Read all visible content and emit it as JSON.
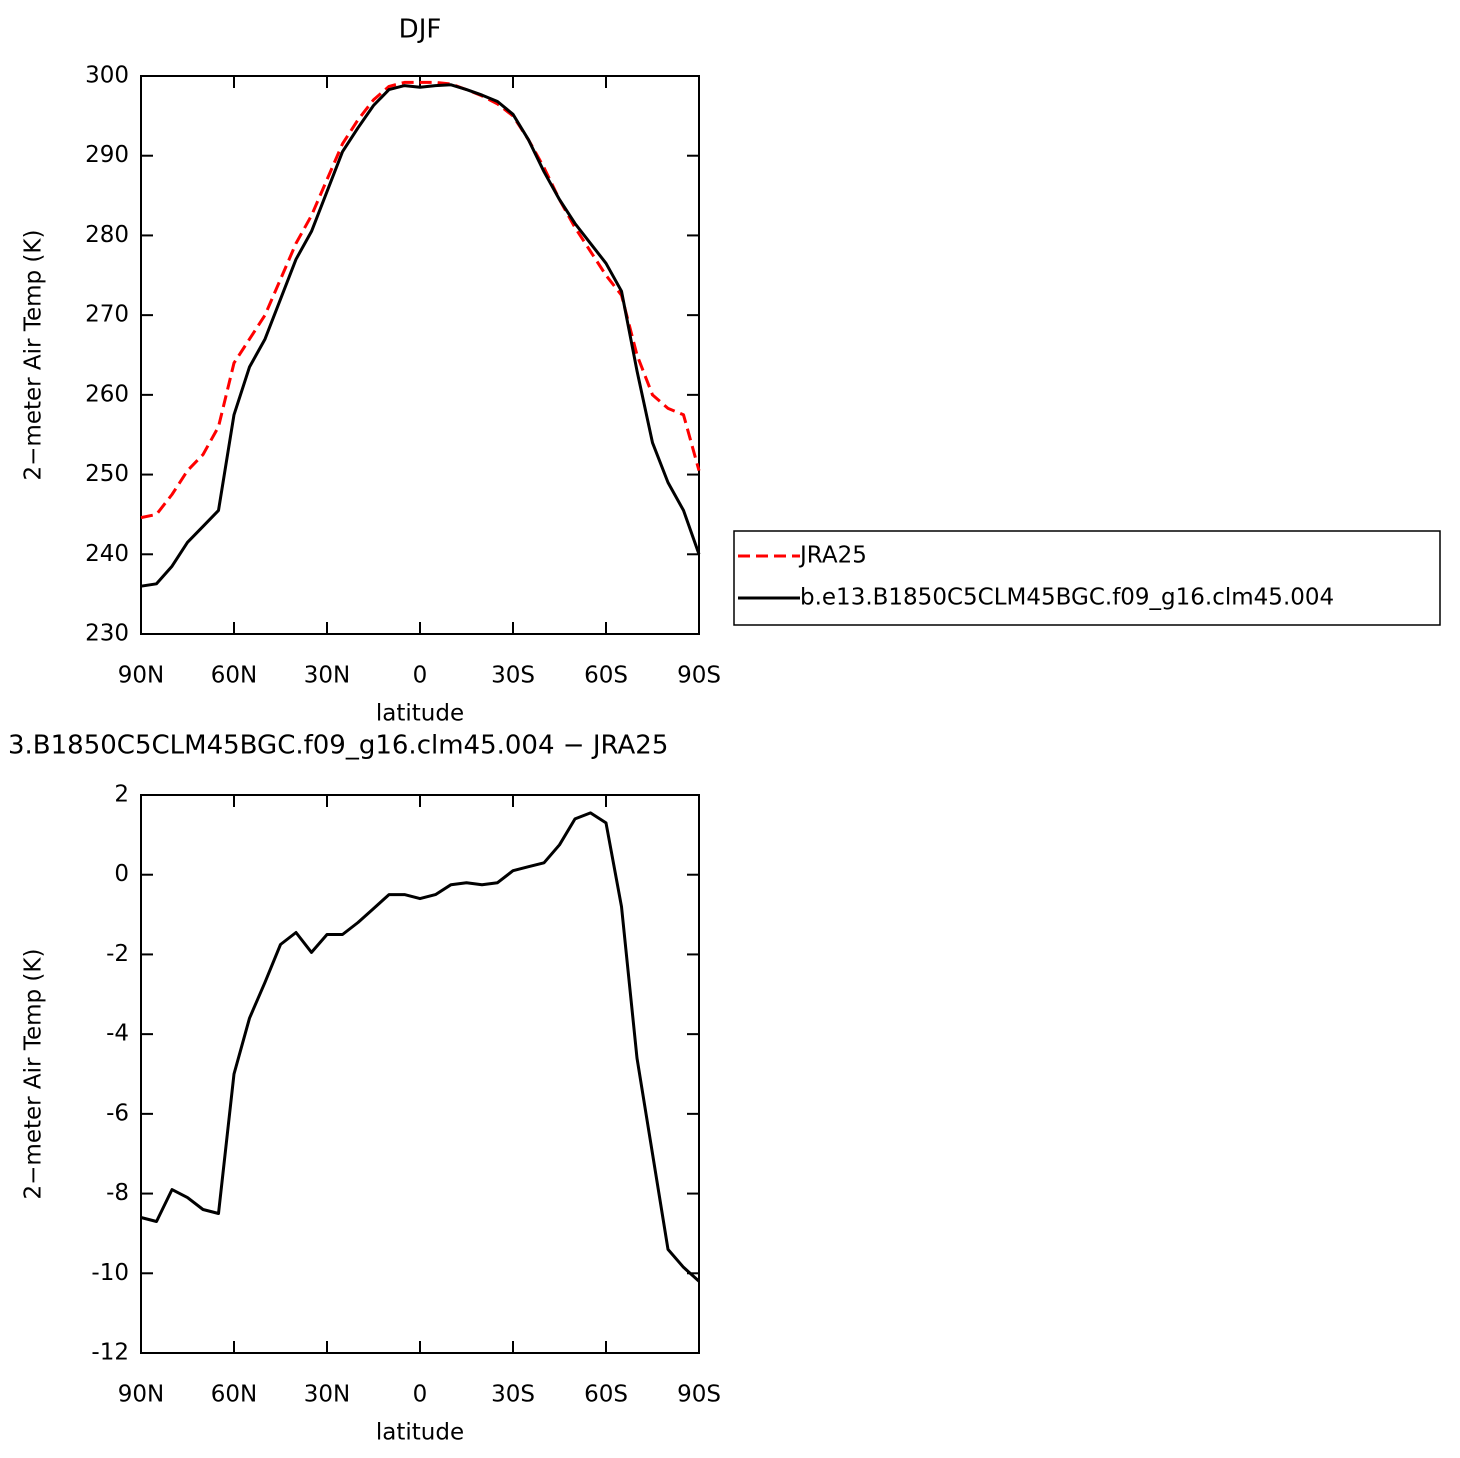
{
  "chart_data": [
    {
      "type": "line",
      "title": "DJF",
      "xlabel": "latitude",
      "ylabel": "2−meter Air Temp (K)",
      "x": [
        90,
        85,
        80,
        75,
        70,
        65,
        60,
        55,
        50,
        45,
        40,
        35,
        30,
        25,
        20,
        15,
        10,
        5,
        0,
        -5,
        -10,
        -15,
        -20,
        -25,
        -30,
        -35,
        -40,
        -45,
        -50,
        -55,
        -60,
        -65,
        -70,
        -75,
        -80,
        -85,
        -90
      ],
      "series": [
        {
          "name": "JRA25",
          "color": "#ff0000",
          "style": "dashed",
          "values": [
            244.6,
            245.0,
            247.5,
            250.5,
            252.5,
            256.0,
            264.0,
            267.0,
            270.0,
            274.5,
            279.0,
            282.5,
            287.0,
            291.5,
            294.5,
            297.0,
            298.7,
            299.2,
            299.2,
            299.2,
            299.0,
            298.3,
            297.5,
            296.5,
            295.0,
            292.0,
            288.5,
            284.5,
            281.0,
            278.0,
            275.0,
            272.5,
            265.0,
            260.0,
            258.3,
            257.5,
            250.5
          ]
        },
        {
          "name": "b.e13.B1850C5CLM45BGC.f09_g16.clm45.004",
          "color": "#000000",
          "style": "solid",
          "values": [
            236.0,
            236.3,
            238.5,
            241.5,
            243.5,
            245.5,
            257.5,
            263.5,
            267.0,
            272.0,
            277.0,
            280.5,
            285.5,
            290.5,
            293.5,
            296.3,
            298.3,
            298.8,
            298.6,
            298.8,
            298.9,
            298.3,
            297.6,
            296.8,
            295.2,
            292.0,
            288.0,
            284.5,
            281.5,
            279.0,
            276.5,
            273.0,
            263.0,
            254.0,
            249.0,
            245.5,
            240.0
          ]
        }
      ],
      "xlim": [
        90,
        -90
      ],
      "xticks": [
        {
          "value": 90,
          "label": "90N"
        },
        {
          "value": 60,
          "label": "60N"
        },
        {
          "value": 30,
          "label": "30N"
        },
        0,
        {
          "value": -30,
          "label": "30S"
        },
        {
          "value": -60,
          "label": "60S"
        },
        {
          "value": -90,
          "label": "90S"
        }
      ],
      "ylim": [
        230,
        300
      ],
      "yticks": [
        230,
        240,
        250,
        260,
        270,
        280,
        290,
        300
      ],
      "legend": "right"
    },
    {
      "type": "line",
      "title": "3.B1850C5CLM45BGC.f09_g16.clm45.004 − JRA25",
      "xlabel": "latitude",
      "ylabel": "2−meter Air Temp (K)",
      "x": [
        90,
        85,
        80,
        75,
        70,
        65,
        60,
        55,
        50,
        45,
        40,
        35,
        30,
        25,
        20,
        15,
        10,
        5,
        0,
        -5,
        -10,
        -15,
        -20,
        -25,
        -30,
        -35,
        -40,
        -45,
        -50,
        -55,
        -60,
        -65,
        -70,
        -75,
        -80,
        -85,
        -90
      ],
      "color": "#000000",
      "values": [
        -8.6,
        -8.7,
        -7.9,
        -8.1,
        -8.4,
        -8.5,
        -5.0,
        -3.6,
        -2.7,
        -1.75,
        -1.45,
        -1.95,
        -1.5,
        -1.5,
        -1.2,
        -0.85,
        -0.5,
        -0.5,
        -0.6,
        -0.5,
        -0.25,
        -0.2,
        -0.25,
        -0.2,
        0.1,
        0.2,
        0.3,
        0.75,
        1.4,
        1.55,
        1.3,
        -0.8,
        -4.6,
        -7.0,
        -9.4,
        -9.85,
        -10.2
      ],
      "xlim": [
        90,
        -90
      ],
      "xticks": [
        {
          "value": 90,
          "label": "90N"
        },
        {
          "value": 60,
          "label": "60N"
        },
        {
          "value": 30,
          "label": "30N"
        },
        0,
        {
          "value": -30,
          "label": "30S"
        },
        {
          "value": -60,
          "label": "60S"
        },
        {
          "value": -90,
          "label": "90S"
        }
      ],
      "ylim": [
        -12,
        2
      ],
      "yticks": [
        -12,
        -10,
        -8,
        -6,
        -4,
        -2,
        0,
        2
      ]
    }
  ]
}
